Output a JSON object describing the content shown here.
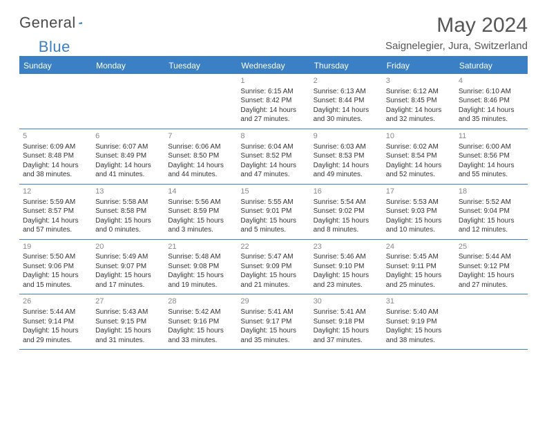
{
  "logo": {
    "part1": "General",
    "part2": "Blue"
  },
  "month_title": "May 2024",
  "location": "Saignelegier, Jura, Switzerland",
  "colors": {
    "header_bg": "#3b7fc4",
    "header_text": "#ffffff",
    "border": "#3b7fc4",
    "day_number": "#888888",
    "body_text": "#333333",
    "title_text": "#555555",
    "background": "#ffffff"
  },
  "weekdays": [
    "Sunday",
    "Monday",
    "Tuesday",
    "Wednesday",
    "Thursday",
    "Friday",
    "Saturday"
  ],
  "weeks": [
    [
      {},
      {},
      {},
      {
        "n": "1",
        "sr": "6:15 AM",
        "ss": "8:42 PM",
        "dl": "14 hours and 27 minutes."
      },
      {
        "n": "2",
        "sr": "6:13 AM",
        "ss": "8:44 PM",
        "dl": "14 hours and 30 minutes."
      },
      {
        "n": "3",
        "sr": "6:12 AM",
        "ss": "8:45 PM",
        "dl": "14 hours and 32 minutes."
      },
      {
        "n": "4",
        "sr": "6:10 AM",
        "ss": "8:46 PM",
        "dl": "14 hours and 35 minutes."
      }
    ],
    [
      {
        "n": "5",
        "sr": "6:09 AM",
        "ss": "8:48 PM",
        "dl": "14 hours and 38 minutes."
      },
      {
        "n": "6",
        "sr": "6:07 AM",
        "ss": "8:49 PM",
        "dl": "14 hours and 41 minutes."
      },
      {
        "n": "7",
        "sr": "6:06 AM",
        "ss": "8:50 PM",
        "dl": "14 hours and 44 minutes."
      },
      {
        "n": "8",
        "sr": "6:04 AM",
        "ss": "8:52 PM",
        "dl": "14 hours and 47 minutes."
      },
      {
        "n": "9",
        "sr": "6:03 AM",
        "ss": "8:53 PM",
        "dl": "14 hours and 49 minutes."
      },
      {
        "n": "10",
        "sr": "6:02 AM",
        "ss": "8:54 PM",
        "dl": "14 hours and 52 minutes."
      },
      {
        "n": "11",
        "sr": "6:00 AM",
        "ss": "8:56 PM",
        "dl": "14 hours and 55 minutes."
      }
    ],
    [
      {
        "n": "12",
        "sr": "5:59 AM",
        "ss": "8:57 PM",
        "dl": "14 hours and 57 minutes."
      },
      {
        "n": "13",
        "sr": "5:58 AM",
        "ss": "8:58 PM",
        "dl": "15 hours and 0 minutes."
      },
      {
        "n": "14",
        "sr": "5:56 AM",
        "ss": "8:59 PM",
        "dl": "15 hours and 3 minutes."
      },
      {
        "n": "15",
        "sr": "5:55 AM",
        "ss": "9:01 PM",
        "dl": "15 hours and 5 minutes."
      },
      {
        "n": "16",
        "sr": "5:54 AM",
        "ss": "9:02 PM",
        "dl": "15 hours and 8 minutes."
      },
      {
        "n": "17",
        "sr": "5:53 AM",
        "ss": "9:03 PM",
        "dl": "15 hours and 10 minutes."
      },
      {
        "n": "18",
        "sr": "5:52 AM",
        "ss": "9:04 PM",
        "dl": "15 hours and 12 minutes."
      }
    ],
    [
      {
        "n": "19",
        "sr": "5:50 AM",
        "ss": "9:06 PM",
        "dl": "15 hours and 15 minutes."
      },
      {
        "n": "20",
        "sr": "5:49 AM",
        "ss": "9:07 PM",
        "dl": "15 hours and 17 minutes."
      },
      {
        "n": "21",
        "sr": "5:48 AM",
        "ss": "9:08 PM",
        "dl": "15 hours and 19 minutes."
      },
      {
        "n": "22",
        "sr": "5:47 AM",
        "ss": "9:09 PM",
        "dl": "15 hours and 21 minutes."
      },
      {
        "n": "23",
        "sr": "5:46 AM",
        "ss": "9:10 PM",
        "dl": "15 hours and 23 minutes."
      },
      {
        "n": "24",
        "sr": "5:45 AM",
        "ss": "9:11 PM",
        "dl": "15 hours and 25 minutes."
      },
      {
        "n": "25",
        "sr": "5:44 AM",
        "ss": "9:12 PM",
        "dl": "15 hours and 27 minutes."
      }
    ],
    [
      {
        "n": "26",
        "sr": "5:44 AM",
        "ss": "9:14 PM",
        "dl": "15 hours and 29 minutes."
      },
      {
        "n": "27",
        "sr": "5:43 AM",
        "ss": "9:15 PM",
        "dl": "15 hours and 31 minutes."
      },
      {
        "n": "28",
        "sr": "5:42 AM",
        "ss": "9:16 PM",
        "dl": "15 hours and 33 minutes."
      },
      {
        "n": "29",
        "sr": "5:41 AM",
        "ss": "9:17 PM",
        "dl": "15 hours and 35 minutes."
      },
      {
        "n": "30",
        "sr": "5:41 AM",
        "ss": "9:18 PM",
        "dl": "15 hours and 37 minutes."
      },
      {
        "n": "31",
        "sr": "5:40 AM",
        "ss": "9:19 PM",
        "dl": "15 hours and 38 minutes."
      },
      {}
    ]
  ],
  "labels": {
    "sunrise_prefix": "Sunrise: ",
    "sunset_prefix": "Sunset: ",
    "daylight_prefix": "Daylight: "
  }
}
